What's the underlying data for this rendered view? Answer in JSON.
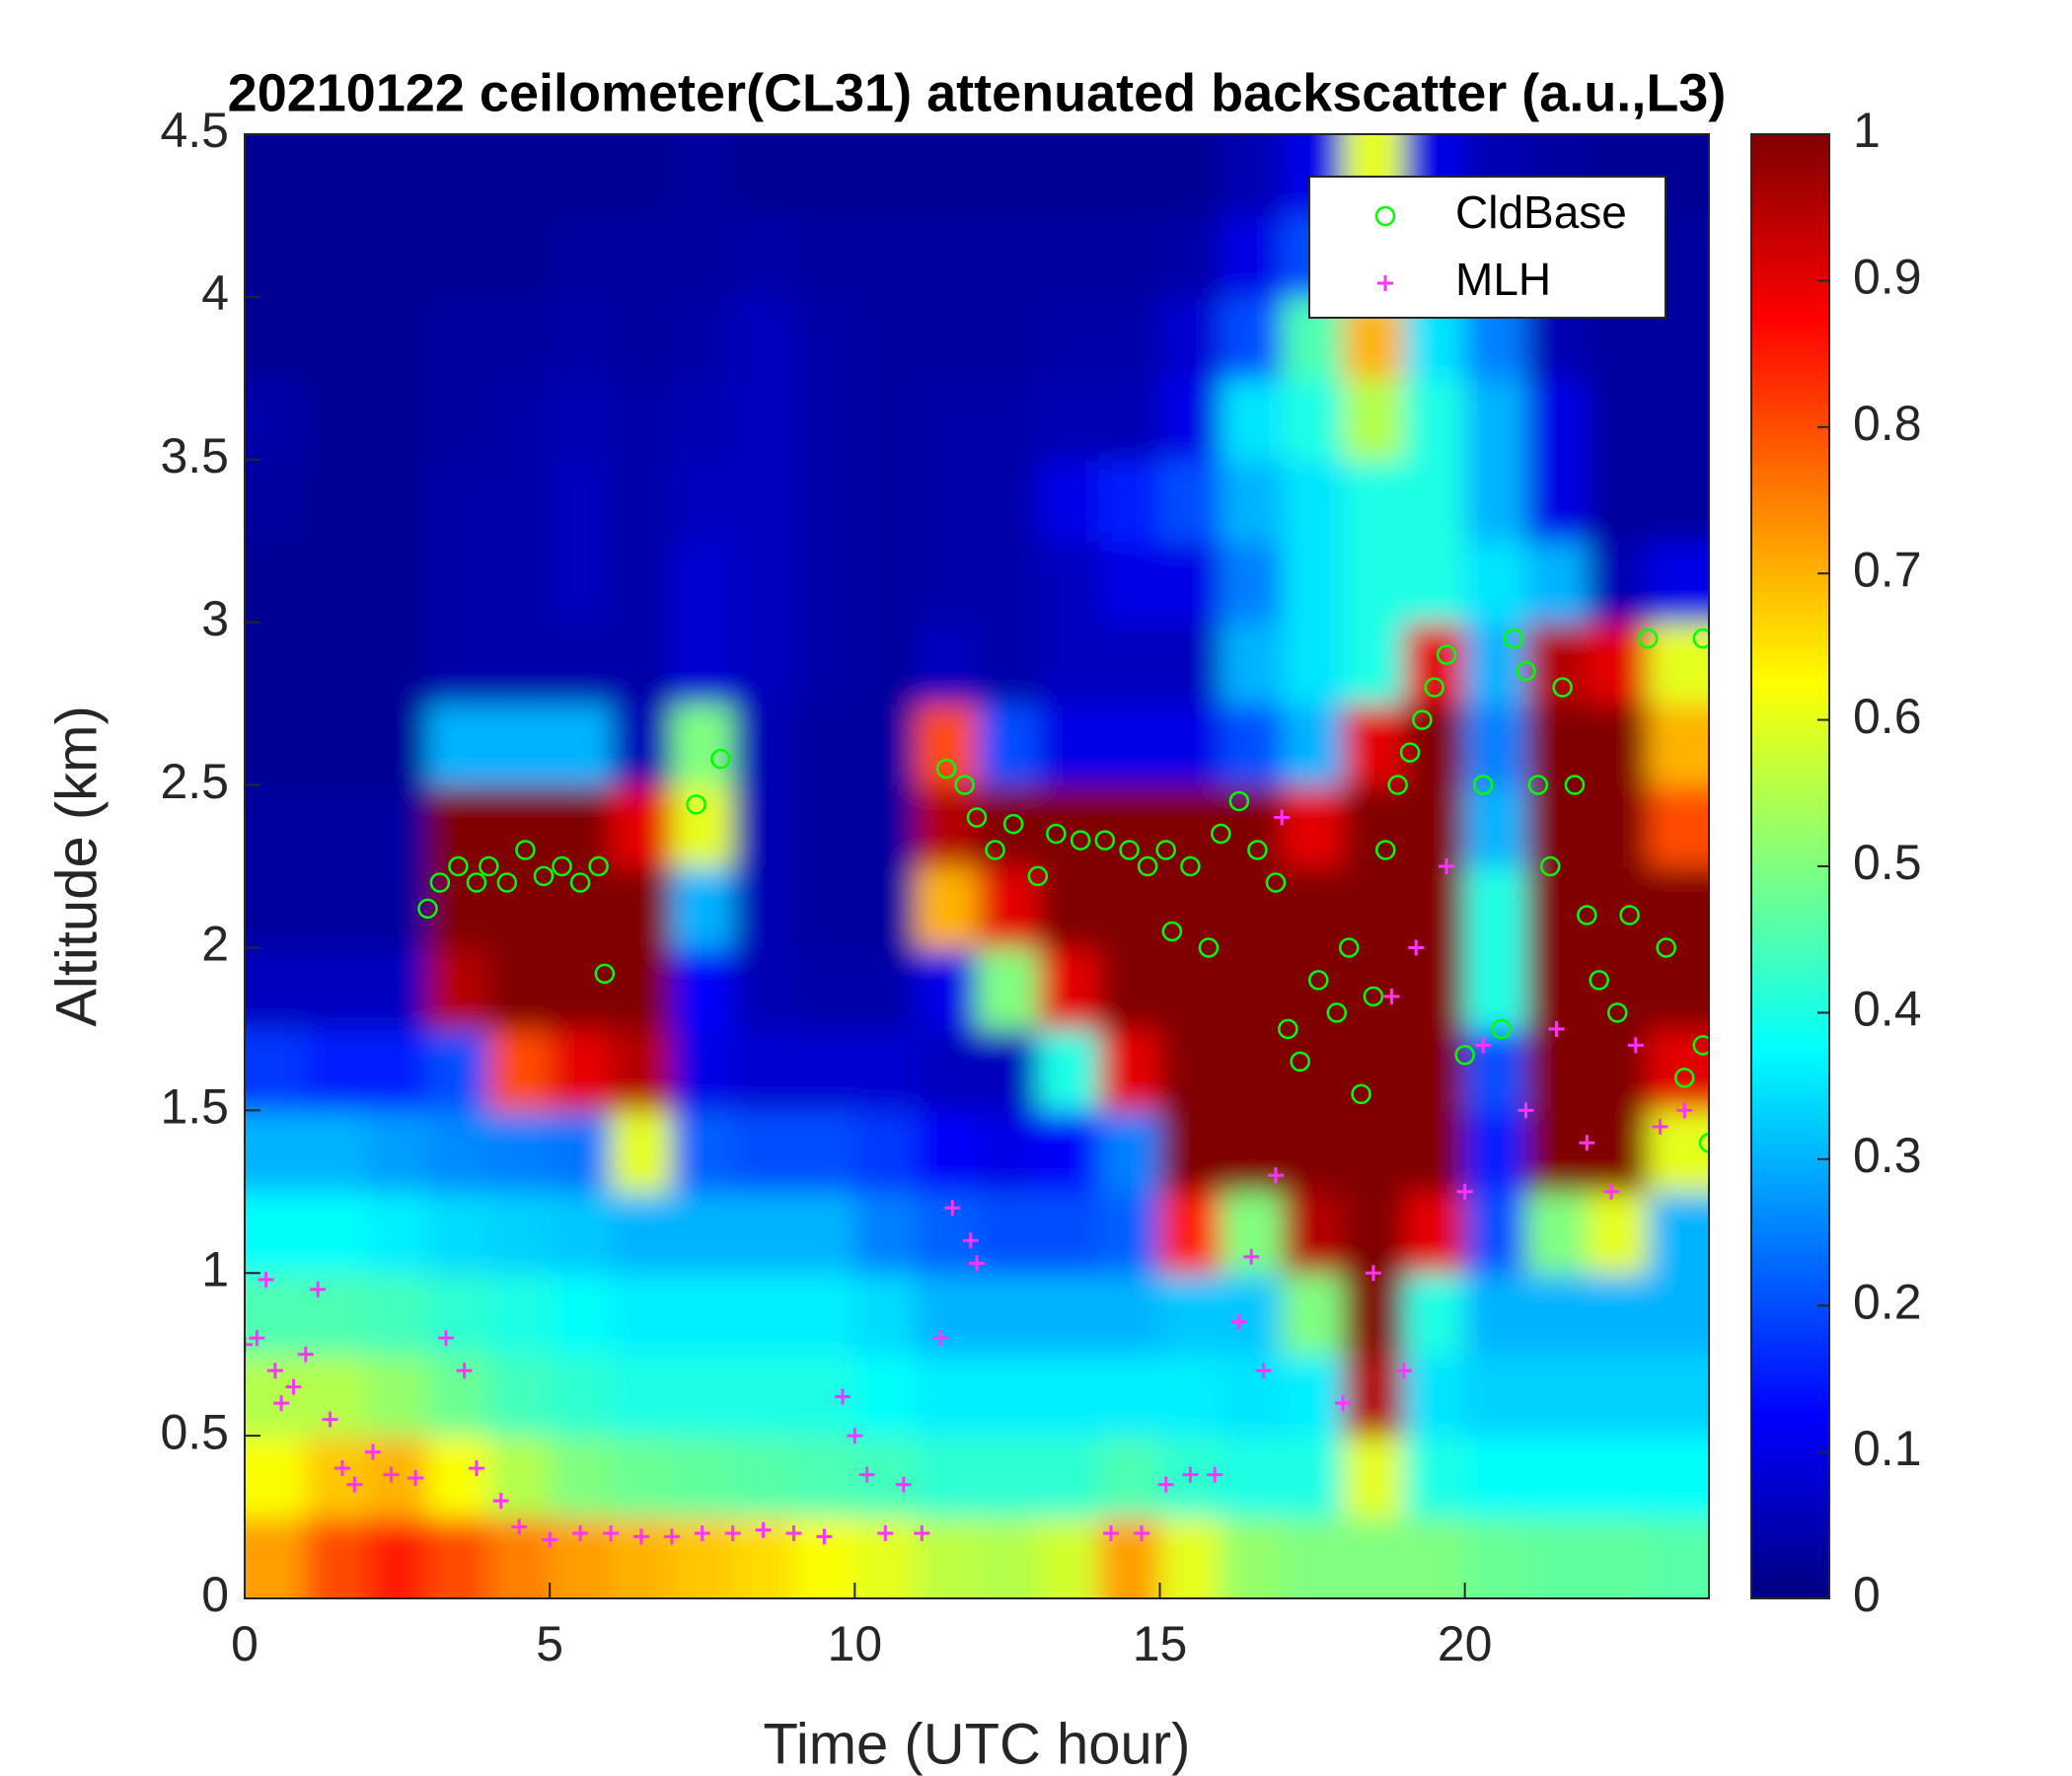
{
  "chart_data": {
    "type": "heatmap",
    "title": "20210122 ceilometer(CL31) attenuated backscatter (a.u.,L3)",
    "x_label": "Time (UTC hour)",
    "y_label": "Altitude (km)",
    "colormap": "jet",
    "xlim": [
      0,
      24
    ],
    "ylim": [
      0,
      4.5
    ],
    "xticks": [
      0,
      5,
      10,
      15,
      20
    ],
    "yticks": [
      0,
      0.5,
      1,
      1.5,
      2,
      2.5,
      3,
      3.5,
      4,
      4.5
    ],
    "clim": [
      0,
      1
    ],
    "cticks": [
      0,
      0.1,
      0.2,
      0.3,
      0.4,
      0.5,
      0.6,
      0.7,
      0.8,
      0.9,
      1
    ],
    "legend_position": "upper right",
    "xbins": [
      0,
      1,
      2,
      3,
      4,
      5,
      6,
      7,
      8,
      9,
      10,
      11,
      12,
      13,
      14,
      15,
      16,
      17,
      18,
      19,
      20,
      21,
      22,
      23,
      24
    ],
    "ybins": [
      0,
      0.25,
      0.5,
      0.75,
      1,
      1.25,
      1.5,
      1.75,
      2,
      2.25,
      2.5,
      2.75,
      3,
      3.25,
      3.5,
      3.75,
      4,
      4.25,
      4.5
    ],
    "z": [
      [
        0.72,
        0.8,
        0.85,
        0.8,
        0.75,
        0.72,
        0.7,
        0.68,
        0.66,
        0.62,
        0.6,
        0.56,
        0.55,
        0.58,
        0.72,
        0.6,
        0.52,
        0.5,
        0.5,
        0.5,
        0.48,
        0.47,
        0.47,
        0.46
      ],
      [
        0.62,
        0.68,
        0.7,
        0.62,
        0.55,
        0.5,
        0.48,
        0.47,
        0.46,
        0.45,
        0.44,
        0.42,
        0.42,
        0.42,
        0.45,
        0.42,
        0.4,
        0.4,
        0.6,
        0.4,
        0.38,
        0.38,
        0.38,
        0.38
      ],
      [
        0.55,
        0.55,
        0.52,
        0.48,
        0.44,
        0.42,
        0.4,
        0.4,
        0.4,
        0.4,
        0.38,
        0.36,
        0.36,
        0.36,
        0.36,
        0.36,
        0.35,
        0.36,
        0.95,
        0.35,
        0.33,
        0.33,
        0.33,
        0.33
      ],
      [
        0.45,
        0.45,
        0.44,
        0.42,
        0.4,
        0.38,
        0.36,
        0.36,
        0.36,
        0.36,
        0.34,
        0.3,
        0.3,
        0.3,
        0.3,
        0.32,
        0.32,
        0.5,
        1,
        0.4,
        0.3,
        0.3,
        0.3,
        0.3
      ],
      [
        0.38,
        0.38,
        0.36,
        0.34,
        0.33,
        0.32,
        0.3,
        0.3,
        0.3,
        0.3,
        0.25,
        0.22,
        0.2,
        0.2,
        0.22,
        0.85,
        0.5,
        0.95,
        1,
        0.9,
        0.2,
        0.5,
        0.6,
        0.3
      ],
      [
        0.3,
        0.3,
        0.28,
        0.26,
        0.25,
        0.24,
        0.6,
        0.22,
        0.2,
        0.2,
        0.18,
        0.12,
        0.1,
        0.12,
        0.25,
        1,
        1,
        1,
        1,
        1,
        0.15,
        1,
        1,
        0.6
      ],
      [
        0.18,
        0.15,
        0.15,
        0.2,
        0.8,
        0.9,
        0.95,
        0.1,
        0.08,
        0.08,
        0.08,
        0.06,
        0.06,
        0.4,
        0.9,
        1,
        1,
        1,
        1,
        1,
        0.2,
        1,
        1,
        0.9
      ],
      [
        0.06,
        0.06,
        0.06,
        0.95,
        1,
        1,
        1,
        0.12,
        0.05,
        0.04,
        0.04,
        0.1,
        0.5,
        0.9,
        1,
        1,
        1,
        1,
        1,
        1,
        0.4,
        1,
        1,
        1
      ],
      [
        0.03,
        0.03,
        0.03,
        1,
        1,
        1,
        1,
        0.3,
        0.05,
        0.03,
        0.03,
        0.7,
        0.9,
        1,
        1,
        1,
        1,
        1,
        1,
        1,
        0.4,
        1,
        1,
        1
      ],
      [
        0.03,
        0.03,
        0.03,
        1,
        1,
        1,
        0.9,
        0.6,
        0.05,
        0.03,
        0.03,
        0.95,
        1,
        1,
        1,
        1,
        1,
        0.9,
        1,
        1,
        0.3,
        1,
        1,
        0.8
      ],
      [
        0.02,
        0.02,
        0.02,
        0.3,
        0.3,
        0.3,
        0.05,
        0.5,
        0.05,
        0.03,
        0.03,
        0.8,
        0.2,
        0.1,
        0.1,
        0.1,
        0.2,
        0.3,
        0.9,
        1,
        0.25,
        1,
        1,
        0.7
      ],
      [
        0.02,
        0.02,
        0.02,
        0.04,
        0.04,
        0.04,
        0.04,
        0.08,
        0.06,
        0.04,
        0.03,
        0.06,
        0.04,
        0.06,
        0.06,
        0.06,
        0.3,
        0.35,
        0.4,
        0.9,
        0.3,
        0.95,
        0.9,
        0.6
      ],
      [
        0.02,
        0.02,
        0.02,
        0.04,
        0.04,
        0.06,
        0.04,
        0.08,
        0.06,
        0.04,
        0.03,
        0.04,
        0.04,
        0.06,
        0.1,
        0.1,
        0.25,
        0.35,
        0.4,
        0.4,
        0.35,
        0.3,
        0.05,
        0.1
      ],
      [
        0.03,
        0.02,
        0.02,
        0.04,
        0.04,
        0.06,
        0.04,
        0.06,
        0.06,
        0.04,
        0.03,
        0.04,
        0.04,
        0.1,
        0.15,
        0.2,
        0.3,
        0.35,
        0.4,
        0.4,
        0.3,
        0.1,
        0.03,
        0.03
      ],
      [
        0.04,
        0.02,
        0.02,
        0.03,
        0.04,
        0.05,
        0.04,
        0.05,
        0.06,
        0.04,
        0.03,
        0.04,
        0.04,
        0.05,
        0.05,
        0.1,
        0.35,
        0.4,
        0.55,
        0.4,
        0.3,
        0.1,
        0.03,
        0.03
      ],
      [
        0.02,
        0.02,
        0.02,
        0.03,
        0.03,
        0.04,
        0.03,
        0.04,
        0.06,
        0.04,
        0.03,
        0.03,
        0.03,
        0.04,
        0.04,
        0.08,
        0.2,
        0.45,
        0.7,
        0.35,
        0.25,
        0.05,
        0.03,
        0.03
      ],
      [
        0.02,
        0.02,
        0.02,
        0.02,
        0.02,
        0.03,
        0.03,
        0.03,
        0.04,
        0.03,
        0.03,
        0.03,
        0.03,
        0.03,
        0.03,
        0.04,
        0.1,
        0.2,
        0.4,
        0.25,
        0.1,
        0.04,
        0.03,
        0.03
      ],
      [
        0.02,
        0.02,
        0.02,
        0.02,
        0.02,
        0.02,
        0.02,
        0.03,
        0.02,
        0.02,
        0.02,
        0.02,
        0.02,
        0.02,
        0.02,
        0.02,
        0.05,
        0.1,
        0.6,
        0.1,
        0.05,
        0.03,
        0.02,
        0.02
      ]
    ],
    "series": [
      {
        "name": "CldBase",
        "color": "#00ff00",
        "marker": "circle",
        "x": [
          3.0,
          3.2,
          3.5,
          3.8,
          4.0,
          4.3,
          4.6,
          4.9,
          5.2,
          5.5,
          5.8,
          5.9,
          7.4,
          7.8,
          11.5,
          11.8,
          12.0,
          12.3,
          12.6,
          13.0,
          13.3,
          13.7,
          14.1,
          14.5,
          14.8,
          15.1,
          15.2,
          15.5,
          15.8,
          16.0,
          16.3,
          16.6,
          16.9,
          17.1,
          17.3,
          17.6,
          17.9,
          18.1,
          18.3,
          18.5,
          18.7,
          18.9,
          19.1,
          19.3,
          19.5,
          19.7,
          20.0,
          20.3,
          20.6,
          20.8,
          21.0,
          21.2,
          21.4,
          21.6,
          21.8,
          22.0,
          22.2,
          22.5,
          22.7,
          23.0,
          23.3,
          23.6,
          23.9,
          24.0,
          23.9
        ],
        "y": [
          2.12,
          2.2,
          2.25,
          2.2,
          2.25,
          2.2,
          2.3,
          2.22,
          2.25,
          2.2,
          2.25,
          1.92,
          2.44,
          2.58,
          2.55,
          2.5,
          2.4,
          2.3,
          2.38,
          2.22,
          2.35,
          2.33,
          2.33,
          2.3,
          2.25,
          2.3,
          2.05,
          2.25,
          2.0,
          2.35,
          2.45,
          2.3,
          2.2,
          1.75,
          1.65,
          1.9,
          1.8,
          2.0,
          1.55,
          1.85,
          2.3,
          2.5,
          2.6,
          2.7,
          2.8,
          2.9,
          1.67,
          2.5,
          1.75,
          2.95,
          2.85,
          2.5,
          2.25,
          2.8,
          2.5,
          2.1,
          1.9,
          1.8,
          2.1,
          2.95,
          2.0,
          1.6,
          1.7,
          1.4,
          2.95
        ]
      },
      {
        "name": "MLH",
        "color": "#ff33ff",
        "marker": "plus",
        "x": [
          0,
          0.2,
          0.35,
          0.5,
          0.6,
          0.8,
          1.0,
          1.2,
          1.4,
          1.6,
          1.8,
          2.1,
          2.4,
          2.8,
          3.3,
          3.6,
          3.8,
          4.2,
          4.5,
          5.0,
          5.5,
          6.0,
          6.5,
          7.0,
          7.5,
          8.0,
          8.5,
          9.0,
          9.5,
          9.8,
          10.0,
          10.2,
          10.5,
          10.8,
          11.1,
          11.4,
          11.6,
          11.9,
          12.0,
          14.2,
          14.7,
          15.1,
          15.5,
          15.9,
          16.3,
          16.5,
          16.7,
          16.9,
          17.0,
          18.0,
          18.5,
          18.8,
          19.0,
          19.2,
          19.7,
          20.0,
          20.3,
          21.0,
          21.5,
          22.0,
          22.4,
          22.8,
          23.2,
          23.6
        ],
        "y": [
          0.78,
          0.8,
          0.98,
          0.7,
          0.6,
          0.65,
          0.75,
          0.95,
          0.55,
          0.4,
          0.35,
          0.45,
          0.38,
          0.37,
          0.8,
          0.7,
          0.4,
          0.3,
          0.22,
          0.18,
          0.2,
          0.2,
          0.19,
          0.19,
          0.2,
          0.2,
          0.21,
          0.2,
          0.19,
          0.62,
          0.5,
          0.38,
          0.2,
          0.35,
          0.2,
          0.8,
          1.2,
          1.1,
          1.03,
          0.2,
          0.2,
          0.35,
          0.38,
          0.38,
          0.85,
          1.05,
          0.7,
          1.3,
          2.4,
          0.6,
          1.0,
          1.85,
          0.7,
          2.0,
          2.25,
          1.25,
          1.7,
          1.5,
          1.75,
          1.4,
          1.25,
          1.7,
          1.45,
          1.5
        ]
      }
    ]
  }
}
